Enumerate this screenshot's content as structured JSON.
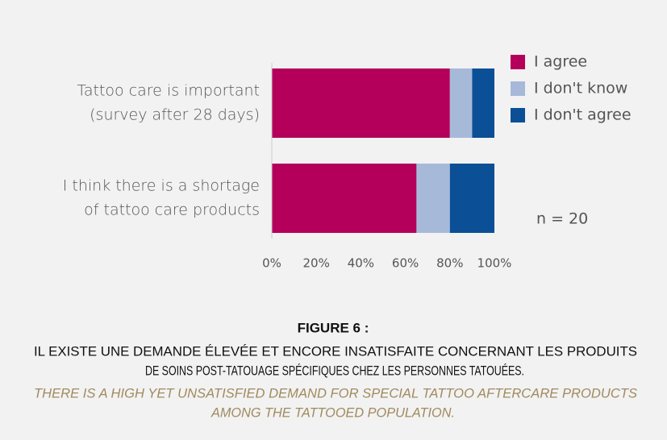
{
  "chart_data": {
    "type": "stacked_bar_horizontal",
    "categories": [
      [
        "Tattoo care is important",
        "(survey after 28 days)"
      ],
      [
        "I think there is a shortage",
        "of tattoo care products"
      ]
    ],
    "series": [
      {
        "name": "I agree",
        "color": "#b5005b",
        "values": [
          80,
          65
        ]
      },
      {
        "name": "I don't know",
        "color": "#a7b9d9",
        "values": [
          10,
          15
        ]
      },
      {
        "name": "I don't agree",
        "color": "#0b4f96",
        "values": [
          10,
          20
        ]
      }
    ],
    "xlim": [
      0,
      100
    ],
    "xticks": [
      {
        "value": 0,
        "label": "0%"
      },
      {
        "value": 20,
        "label": "20%"
      },
      {
        "value": 40,
        "label": "40%"
      },
      {
        "value": 60,
        "label": "60%"
      },
      {
        "value": 80,
        "label": "80%"
      },
      {
        "value": 100,
        "label": "100%"
      }
    ],
    "legend": "right",
    "annotation": "n = 20"
  },
  "caption": {
    "label": "FIGURE 6 :",
    "french": [
      "IL EXISTE UNE DEMANDE ÉLEVÉE ET ENCORE INSATISFAITE CONCERNANT LES PRODUITS",
      "DE SOINS POST-TATOUAGE SPÉCIFIQUES CHEZ LES PERSONNES TATOUÉES."
    ],
    "english": [
      "THERE IS A HIGH YET UNSATISFIED DEMAND FOR SPECIAL TATTOO AFTERCARE PRODUCTS",
      "AMONG THE TATTOOED POPULATION."
    ]
  }
}
